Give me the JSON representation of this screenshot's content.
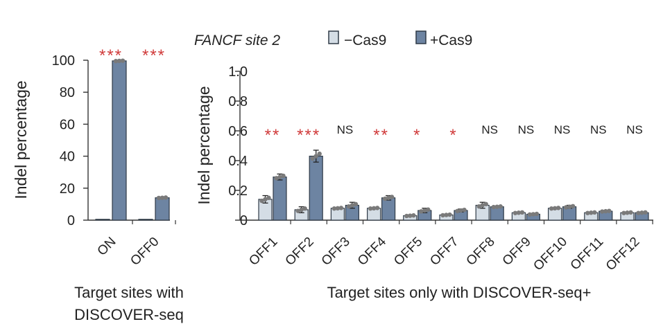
{
  "colors": {
    "minus": "#d4dde5",
    "plus": "#6d84a2",
    "edge": "#2f3a46",
    "dot": "#7a7a7a",
    "sig": "#d03b3b",
    "ns": "#222222"
  },
  "legend": {
    "title": "FANCF site 2",
    "minus_label": "−Cas9",
    "plus_label": "+Cas9"
  },
  "chart_data": [
    {
      "type": "bar",
      "ylabel": "Indel percentage",
      "xlabel": "Target sites with\nDISCOVER-seq",
      "xlabel_lines": [
        "Target sites with",
        "DISCOVER-seq"
      ],
      "ylim": [
        0,
        100
      ],
      "yticks": [
        0,
        20,
        40,
        60,
        80,
        100
      ],
      "ytick_labels": [
        "0",
        "20",
        "40",
        "60",
        "80",
        "100"
      ],
      "categories": [
        "ON",
        "OFF0"
      ],
      "series": [
        {
          "name": "−Cas9",
          "values": [
            0.2,
            0.2
          ],
          "errors": [
            0,
            0
          ]
        },
        {
          "name": "+Cas9",
          "values": [
            99.6,
            14.0
          ],
          "errors": [
            0.3,
            0.3
          ]
        }
      ],
      "significance": [
        "***",
        "***"
      ]
    },
    {
      "type": "bar",
      "ylabel": "Indel percentage",
      "xlabel": "Target sites only with DISCOVER-seq+",
      "ylim": [
        0,
        1.0
      ],
      "yticks": [
        0,
        0.2,
        0.4,
        0.6,
        0.8,
        1.0
      ],
      "ytick_labels": [
        "0",
        "0.2",
        "0.4",
        "0.6",
        "0.8",
        "1.0"
      ],
      "categories": [
        "OFF1",
        "OFF2",
        "OFF3",
        "OFF4",
        "OFF5",
        "OFF7",
        "OFF8",
        "OFF9",
        "OFF10",
        "OFF11",
        "OFF12"
      ],
      "series": [
        {
          "name": "−Cas9",
          "values": [
            0.14,
            0.07,
            0.08,
            0.08,
            0.03,
            0.035,
            0.1,
            0.05,
            0.08,
            0.05,
            0.05
          ],
          "errors": [
            0.025,
            0.02,
            0.005,
            0.005,
            0.005,
            0.005,
            0.02,
            0.005,
            0.005,
            0.005,
            0.005
          ]
        },
        {
          "name": "+Cas9",
          "values": [
            0.29,
            0.43,
            0.1,
            0.15,
            0.065,
            0.065,
            0.09,
            0.04,
            0.09,
            0.06,
            0.05
          ],
          "errors": [
            0.02,
            0.04,
            0.02,
            0.015,
            0.015,
            0.01,
            0.005,
            0.005,
            0.01,
            0.005,
            0.005
          ]
        }
      ],
      "significance": [
        "**",
        "***",
        "NS",
        "**",
        "*",
        "*",
        "NS",
        "NS",
        "NS",
        "NS",
        "NS"
      ]
    }
  ]
}
